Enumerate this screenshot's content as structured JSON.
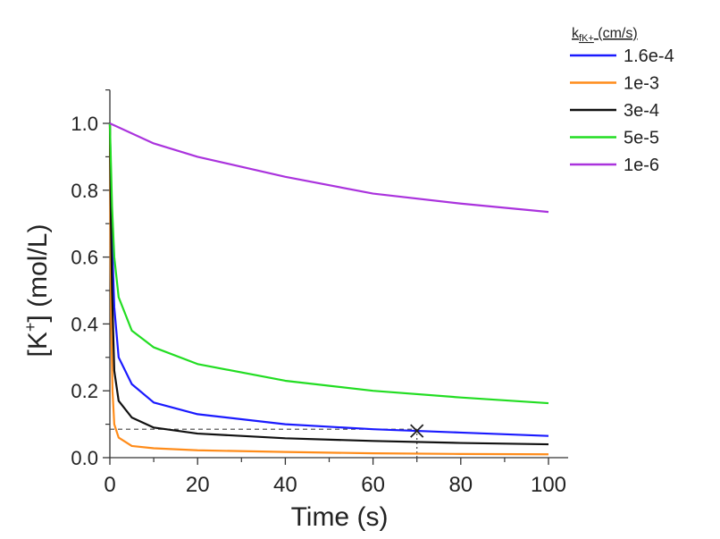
{
  "chart_data": {
    "type": "line",
    "xlabel": "Time (s)",
    "ylabel_main": "[K",
    "ylabel_sup": "+",
    "ylabel_rest": "] (mol/L)",
    "xlim": [
      0,
      100
    ],
    "ylim": [
      0,
      1.1
    ],
    "xticks": [
      0,
      20,
      40,
      60,
      80,
      100
    ],
    "xtick_labels": [
      "0",
      "20",
      "40",
      "60",
      "80",
      "100"
    ],
    "yticks": [
      0,
      0.2,
      0.4,
      0.6,
      0.8,
      1.0
    ],
    "ytick_labels": [
      "0.0",
      "0.2",
      "0.4",
      "0.6",
      "0.8",
      "1.0"
    ],
    "grid": false,
    "legend": {
      "placement": "top-right-outside",
      "title_main": "k",
      "title_sub": "fK+",
      "title_rest": " (cm/s)"
    },
    "series": [
      {
        "name": "1.6e-4",
        "color": "#1a1aff",
        "x": [
          0,
          0.5,
          1,
          2,
          5,
          10,
          20,
          40,
          60,
          80,
          100
        ],
        "y": [
          1.0,
          0.65,
          0.45,
          0.3,
          0.22,
          0.165,
          0.13,
          0.1,
          0.085,
          0.075,
          0.065
        ]
      },
      {
        "name": "1e-3",
        "color": "#ff8c1a",
        "x": [
          0,
          0.15,
          0.3,
          0.6,
          1,
          2,
          5,
          10,
          20,
          40,
          60,
          80,
          100
        ],
        "y": [
          1.0,
          0.6,
          0.4,
          0.2,
          0.1,
          0.06,
          0.035,
          0.028,
          0.022,
          0.017,
          0.013,
          0.011,
          0.01
        ]
      },
      {
        "name": "3e-4",
        "color": "#111111",
        "x": [
          0,
          0.25,
          0.5,
          1,
          2,
          5,
          10,
          20,
          40,
          60,
          80,
          100
        ],
        "y": [
          1.0,
          0.7,
          0.5,
          0.26,
          0.17,
          0.12,
          0.09,
          0.072,
          0.058,
          0.05,
          0.044,
          0.04
        ]
      },
      {
        "name": "5e-5",
        "color": "#22dd22",
        "x": [
          0,
          0.5,
          1,
          2,
          5,
          10,
          20,
          40,
          60,
          80,
          100
        ],
        "y": [
          1.0,
          0.75,
          0.6,
          0.48,
          0.38,
          0.33,
          0.28,
          0.23,
          0.2,
          0.18,
          0.163
        ]
      },
      {
        "name": "1e-6",
        "color": "#aa33dd",
        "x": [
          0,
          10,
          20,
          40,
          60,
          80,
          100
        ],
        "y": [
          1.0,
          0.94,
          0.9,
          0.84,
          0.79,
          0.76,
          0.735
        ]
      }
    ],
    "annotations": {
      "marker": {
        "symbol": "x",
        "x": 70,
        "y": 0.08
      },
      "hline": {
        "y": 0.085,
        "x_from": 0,
        "x_to": 70,
        "style": "dashed"
      },
      "vline": {
        "x": 70,
        "y_from": 0,
        "y_to": 0.085,
        "style": "dotted"
      }
    }
  }
}
